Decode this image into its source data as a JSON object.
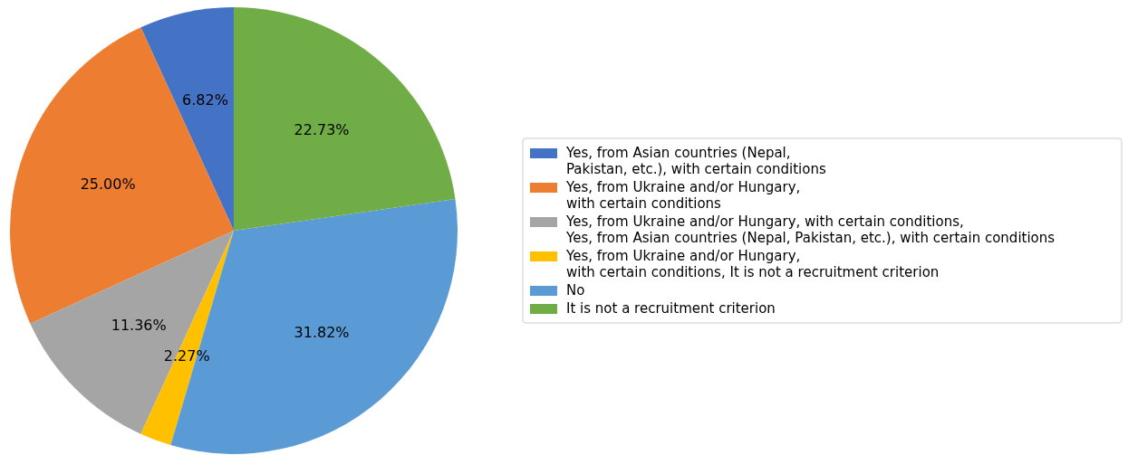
{
  "chart_data": {
    "type": "pie",
    "categories": [
      "Yes, from Asian countries (Nepal,\nPakistan, etc.), with certain conditions",
      "Yes, from Ukraine and/or Hungary,\nwith certain conditions",
      "Yes, from Ukraine and/or Hungary, with certain conditions,\nYes, from Asian countries (Nepal, Pakistan, etc.), with certain conditions",
      "Yes, from Ukraine and/or Hungary,\nwith certain conditions, It is not a recruitment criterion",
      "No",
      "It is not a recruitment criterion"
    ],
    "values": [
      6.82,
      25.0,
      11.36,
      2.27,
      31.82,
      22.73
    ],
    "value_labels": [
      "6.82%",
      "25.00%",
      "11.36%",
      "2.27%",
      "31.82%",
      "22.73%"
    ],
    "colors": [
      "#4472c4",
      "#ed7d31",
      "#a5a5a5",
      "#ffc000",
      "#5b9bd5",
      "#70ad47"
    ],
    "legend": "right"
  }
}
